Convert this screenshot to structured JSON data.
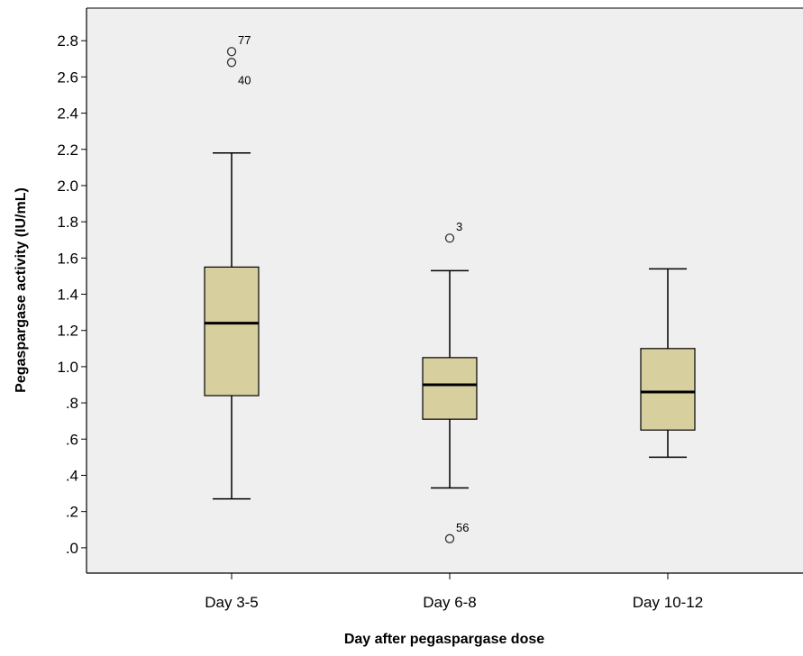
{
  "chart_data": {
    "type": "boxplot",
    "xlabel": "Day after pegaspargase dose",
    "ylabel": "Pegaspargase activity (IU/mL)",
    "ylim": [
      -0.14,
      2.98
    ],
    "yticks": [
      {
        "value": 0.0,
        "label": ".0"
      },
      {
        "value": 0.2,
        "label": ".2"
      },
      {
        "value": 0.4,
        "label": ".4"
      },
      {
        "value": 0.6,
        "label": ".6"
      },
      {
        "value": 0.8,
        "label": ".8"
      },
      {
        "value": 1.0,
        "label": "1.0"
      },
      {
        "value": 1.2,
        "label": "1.2"
      },
      {
        "value": 1.4,
        "label": "1.4"
      },
      {
        "value": 1.6,
        "label": "1.6"
      },
      {
        "value": 1.8,
        "label": "1.8"
      },
      {
        "value": 2.0,
        "label": "2.0"
      },
      {
        "value": 2.2,
        "label": "2.2"
      },
      {
        "value": 2.4,
        "label": "2.4"
      },
      {
        "value": 2.6,
        "label": "2.6"
      },
      {
        "value": 2.8,
        "label": "2.8"
      }
    ],
    "categories": [
      "Day 3-5",
      "Day 6-8",
      "Day 10-12"
    ],
    "boxes": [
      {
        "category": "Day 3-5",
        "whisker_low": 0.27,
        "q1": 0.84,
        "median": 1.24,
        "q3": 1.55,
        "whisker_high": 2.18,
        "outliers": [
          {
            "value": 2.74,
            "label": "77"
          },
          {
            "value": 2.68,
            "label": "40"
          }
        ]
      },
      {
        "category": "Day 6-8",
        "whisker_low": 0.33,
        "q1": 0.71,
        "median": 0.9,
        "q3": 1.05,
        "whisker_high": 1.53,
        "outliers": [
          {
            "value": 1.71,
            "label": "3"
          },
          {
            "value": 0.05,
            "label": "56"
          }
        ]
      },
      {
        "category": "Day 10-12",
        "whisker_low": 0.5,
        "q1": 0.65,
        "median": 0.86,
        "q3": 1.1,
        "whisker_high": 1.54,
        "outliers": []
      }
    ],
    "colors": {
      "plot_background": "#efefef",
      "box_fill": "#d7cf9d",
      "stroke": "#000000",
      "outlier_stroke": "#333333"
    },
    "grid": false,
    "legend": "none"
  }
}
